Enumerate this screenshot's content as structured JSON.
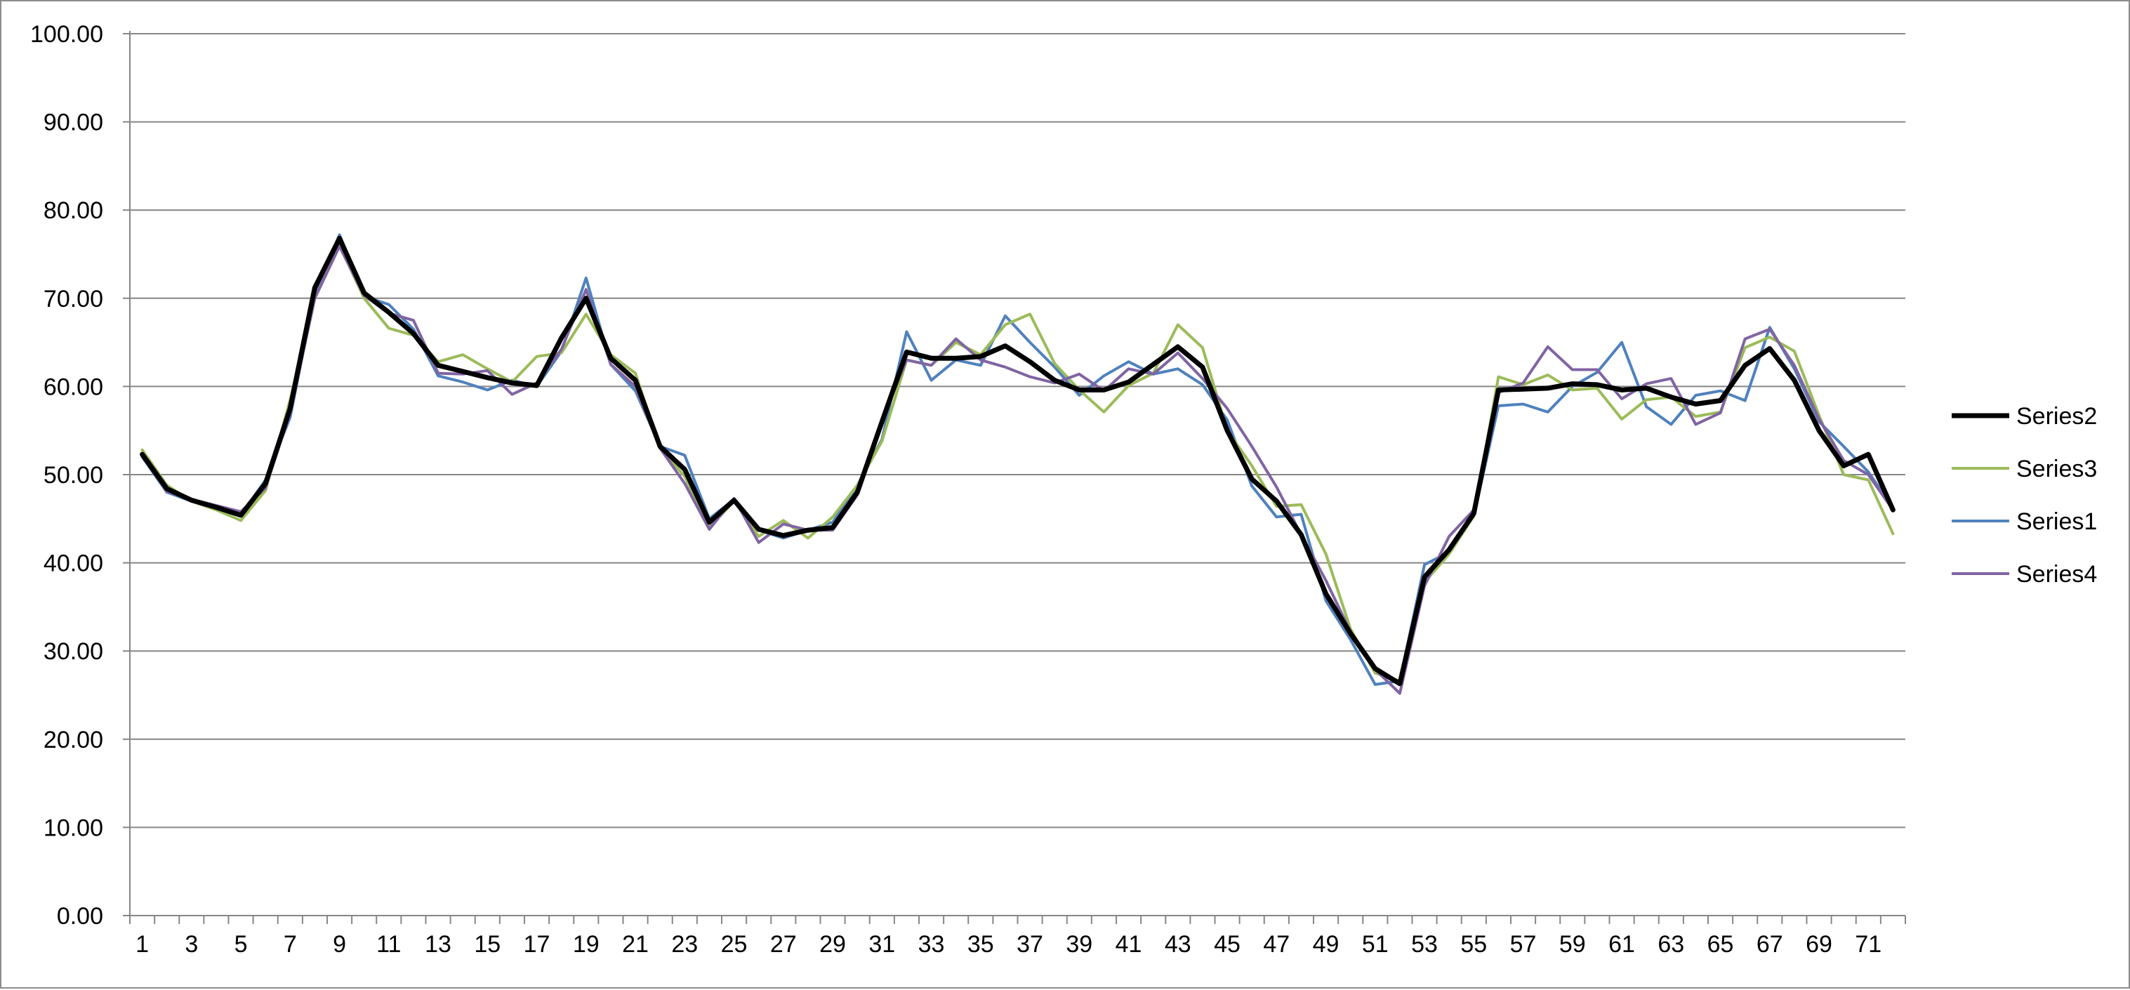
{
  "chart_data": {
    "type": "line",
    "title": "",
    "xlabel": "",
    "ylabel": "",
    "x": [
      1,
      2,
      3,
      4,
      5,
      6,
      7,
      8,
      9,
      10,
      11,
      12,
      13,
      14,
      15,
      16,
      17,
      18,
      19,
      20,
      21,
      22,
      23,
      24,
      25,
      26,
      27,
      28,
      29,
      30,
      31,
      32,
      33,
      34,
      35,
      36,
      37,
      38,
      39,
      40,
      41,
      42,
      43,
      44,
      45,
      46,
      47,
      48,
      49,
      50,
      51,
      52,
      53,
      54,
      55,
      56,
      57,
      58,
      59,
      60,
      61,
      62,
      63,
      64,
      65,
      66,
      67,
      68,
      69,
      70,
      71,
      72
    ],
    "x_tick_labels": [
      "1",
      "3",
      "5",
      "7",
      "9",
      "11",
      "13",
      "15",
      "17",
      "19",
      "21",
      "23",
      "25",
      "27",
      "29",
      "31",
      "33",
      "35",
      "37",
      "39",
      "41",
      "43",
      "45",
      "47",
      "49",
      "51",
      "53",
      "55",
      "57",
      "59",
      "61",
      "63",
      "65",
      "67",
      "69",
      "71"
    ],
    "ylim": [
      0,
      100
    ],
    "y_ticks": [
      "0.00",
      "10.00",
      "20.00",
      "30.00",
      "40.00",
      "50.00",
      "60.00",
      "70.00",
      "80.00",
      "90.00",
      "100.00"
    ],
    "grid": "horizontal",
    "legend": "right",
    "series": [
      {
        "name": "Series2",
        "color": "#000000",
        "width": 7,
        "values": [
          52.3,
          48.4,
          47.1,
          46.3,
          45.4,
          49.0,
          57.5,
          71.2,
          76.8,
          70.6,
          68.4,
          66.0,
          62.4,
          61.7,
          61.0,
          60.4,
          60.1,
          65.5,
          70.0,
          63.2,
          60.7,
          53.2,
          50.6,
          44.6,
          47.1,
          43.8,
          43.1,
          43.7,
          44.0,
          48.0,
          56.0,
          63.9,
          63.2,
          63.2,
          63.4,
          64.6,
          62.8,
          60.7,
          59.6,
          59.6,
          60.5,
          62.5,
          64.5,
          62.2,
          55.0,
          49.5,
          47.0,
          43.2,
          36.5,
          32.0,
          28.0,
          26.3,
          38.4,
          41.5,
          45.6,
          59.6,
          59.7,
          59.8,
          60.3,
          60.2,
          59.6,
          59.8,
          58.8,
          58.0,
          58.4,
          62.4,
          64.3,
          60.7,
          55.0,
          51.0,
          52.3,
          46.0
        ]
      },
      {
        "name": "Series3",
        "color": "#9bbb59",
        "width": 4,
        "values": [
          52.8,
          48.8,
          47.0,
          46.0,
          44.8,
          48.2,
          58.5,
          70.0,
          76.0,
          70.0,
          66.6,
          65.8,
          62.8,
          63.6,
          62.0,
          60.5,
          63.4,
          63.8,
          68.2,
          63.6,
          61.5,
          53.0,
          49.8,
          44.0,
          47.0,
          43.0,
          44.8,
          42.8,
          45.2,
          48.8,
          53.8,
          63.0,
          62.4,
          65.0,
          63.6,
          67.0,
          68.2,
          62.6,
          59.6,
          57.1,
          60.1,
          61.5,
          67.0,
          64.4,
          55.0,
          51.0,
          46.4,
          46.6,
          41.0,
          32.5,
          27.5,
          26.6,
          37.8,
          41.0,
          45.3,
          61.1,
          60.2,
          61.3,
          59.6,
          59.8,
          56.3,
          58.5,
          58.8,
          56.6,
          57.1,
          64.4,
          65.6,
          64.0,
          56.7,
          50.0,
          49.4,
          43.3
        ]
      },
      {
        "name": "Series1",
        "color": "#4f81bd",
        "width": 4,
        "values": [
          52.0,
          48.0,
          47.0,
          46.2,
          45.4,
          49.4,
          56.5,
          70.5,
          77.2,
          70.2,
          69.3,
          66.5,
          61.2,
          60.5,
          59.6,
          60.7,
          60.0,
          64.0,
          72.3,
          62.5,
          59.5,
          53.2,
          52.2,
          45.0,
          47.2,
          43.7,
          42.8,
          43.7,
          44.6,
          48.8,
          54.0,
          66.2,
          60.7,
          63.0,
          62.4,
          68.0,
          65.0,
          62.2,
          59.0,
          61.2,
          62.8,
          61.4,
          62.0,
          60.2,
          56.2,
          48.7,
          45.2,
          45.5,
          35.7,
          31.3,
          26.2,
          26.6,
          39.8,
          41.2,
          45.3,
          57.8,
          58.0,
          57.1,
          60.0,
          61.6,
          65.0,
          57.7,
          55.7,
          59.0,
          59.5,
          58.4,
          66.7,
          62.0,
          56.0,
          53.2,
          50.3,
          46.2
        ]
      },
      {
        "name": "Series4",
        "color": "#8064a2",
        "width": 4,
        "values": [
          52.2,
          48.1,
          47.2,
          46.5,
          45.8,
          48.5,
          57.0,
          70.0,
          75.9,
          70.3,
          68.3,
          67.5,
          61.5,
          61.4,
          61.8,
          59.1,
          60.4,
          64.2,
          71.0,
          62.5,
          60.0,
          53.0,
          49.0,
          43.8,
          47.3,
          42.3,
          44.4,
          43.7,
          43.7,
          47.7,
          56.2,
          63.0,
          62.4,
          65.4,
          63.0,
          62.2,
          61.1,
          60.4,
          61.4,
          59.5,
          62.0,
          61.4,
          63.8,
          60.9,
          57.5,
          53.2,
          48.6,
          43.2,
          38.0,
          32.2,
          27.9,
          25.2,
          37.4,
          43.0,
          46.0,
          59.3,
          60.4,
          64.5,
          61.9,
          61.9,
          58.6,
          60.3,
          60.9,
          55.7,
          57.0,
          65.4,
          66.5,
          62.4,
          56.3,
          51.6,
          50.0,
          46.0
        ]
      }
    ],
    "legend_order": [
      0,
      1,
      2,
      3
    ]
  }
}
